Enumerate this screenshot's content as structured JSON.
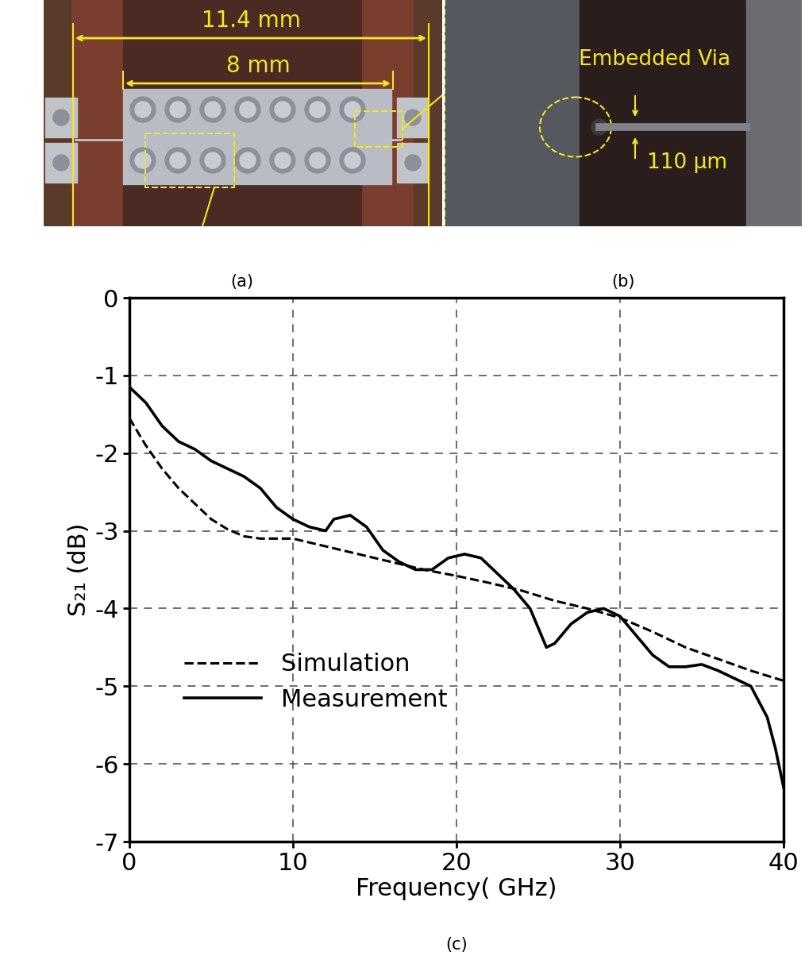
{
  "panels": {
    "a": {
      "caption": "(a)",
      "dimensions": [
        "11.4 mm",
        "8 mm"
      ]
    },
    "b": {
      "caption": "(b)",
      "labels": [
        "Embedded Via",
        "110 µm"
      ]
    }
  },
  "chart_data": {
    "type": "line",
    "caption": "(c)",
    "x_label": "Frequency( GHz)",
    "y_label": "S₂₁ (dB)",
    "xlim": [
      0,
      40
    ],
    "xticks": [
      0,
      10,
      20,
      30,
      40
    ],
    "ylim": [
      -7,
      0
    ],
    "yticks": [
      -7,
      -6,
      -5,
      -4,
      -3,
      -2,
      -1,
      0
    ],
    "grid": true,
    "legend": "lower left",
    "series": [
      {
        "name": "Simulation",
        "color": "#000000",
        "line_style": "dashed",
        "x": [
          0,
          1,
          2,
          3,
          4,
          5,
          6,
          7,
          8,
          10,
          12,
          14,
          16,
          18,
          20,
          22,
          24,
          26,
          28,
          30,
          32,
          34,
          36,
          38,
          40
        ],
        "values": [
          -1.55,
          -1.9,
          -2.2,
          -2.45,
          -2.65,
          -2.85,
          -2.98,
          -3.07,
          -3.1,
          -3.1,
          -3.2,
          -3.3,
          -3.4,
          -3.5,
          -3.58,
          -3.67,
          -3.77,
          -3.9,
          -4.0,
          -4.12,
          -4.3,
          -4.5,
          -4.65,
          -4.8,
          -4.93
        ]
      },
      {
        "name": "Measurement",
        "color": "#000000",
        "line_style": "solid",
        "x": [
          0,
          1,
          2,
          3,
          4,
          5,
          6,
          7,
          8,
          9,
          10,
          11,
          12,
          12.5,
          13.5,
          14.5,
          15.5,
          16.5,
          17.5,
          18.5,
          19.5,
          20.5,
          21.5,
          22.5,
          23.5,
          24.5,
          25.5,
          26,
          27,
          28,
          29,
          30,
          31,
          32,
          33,
          34,
          35,
          36,
          37,
          38,
          39,
          39.5,
          40
        ],
        "values": [
          -1.15,
          -1.35,
          -1.65,
          -1.85,
          -1.95,
          -2.1,
          -2.2,
          -2.3,
          -2.45,
          -2.7,
          -2.85,
          -2.95,
          -3.0,
          -2.85,
          -2.8,
          -2.95,
          -3.25,
          -3.4,
          -3.5,
          -3.5,
          -3.35,
          -3.3,
          -3.35,
          -3.55,
          -3.75,
          -4.0,
          -4.5,
          -4.45,
          -4.2,
          -4.05,
          -4.0,
          -4.1,
          -4.35,
          -4.6,
          -4.75,
          -4.75,
          -4.72,
          -4.8,
          -4.9,
          -5.0,
          -5.4,
          -5.8,
          -6.3
        ]
      }
    ]
  }
}
